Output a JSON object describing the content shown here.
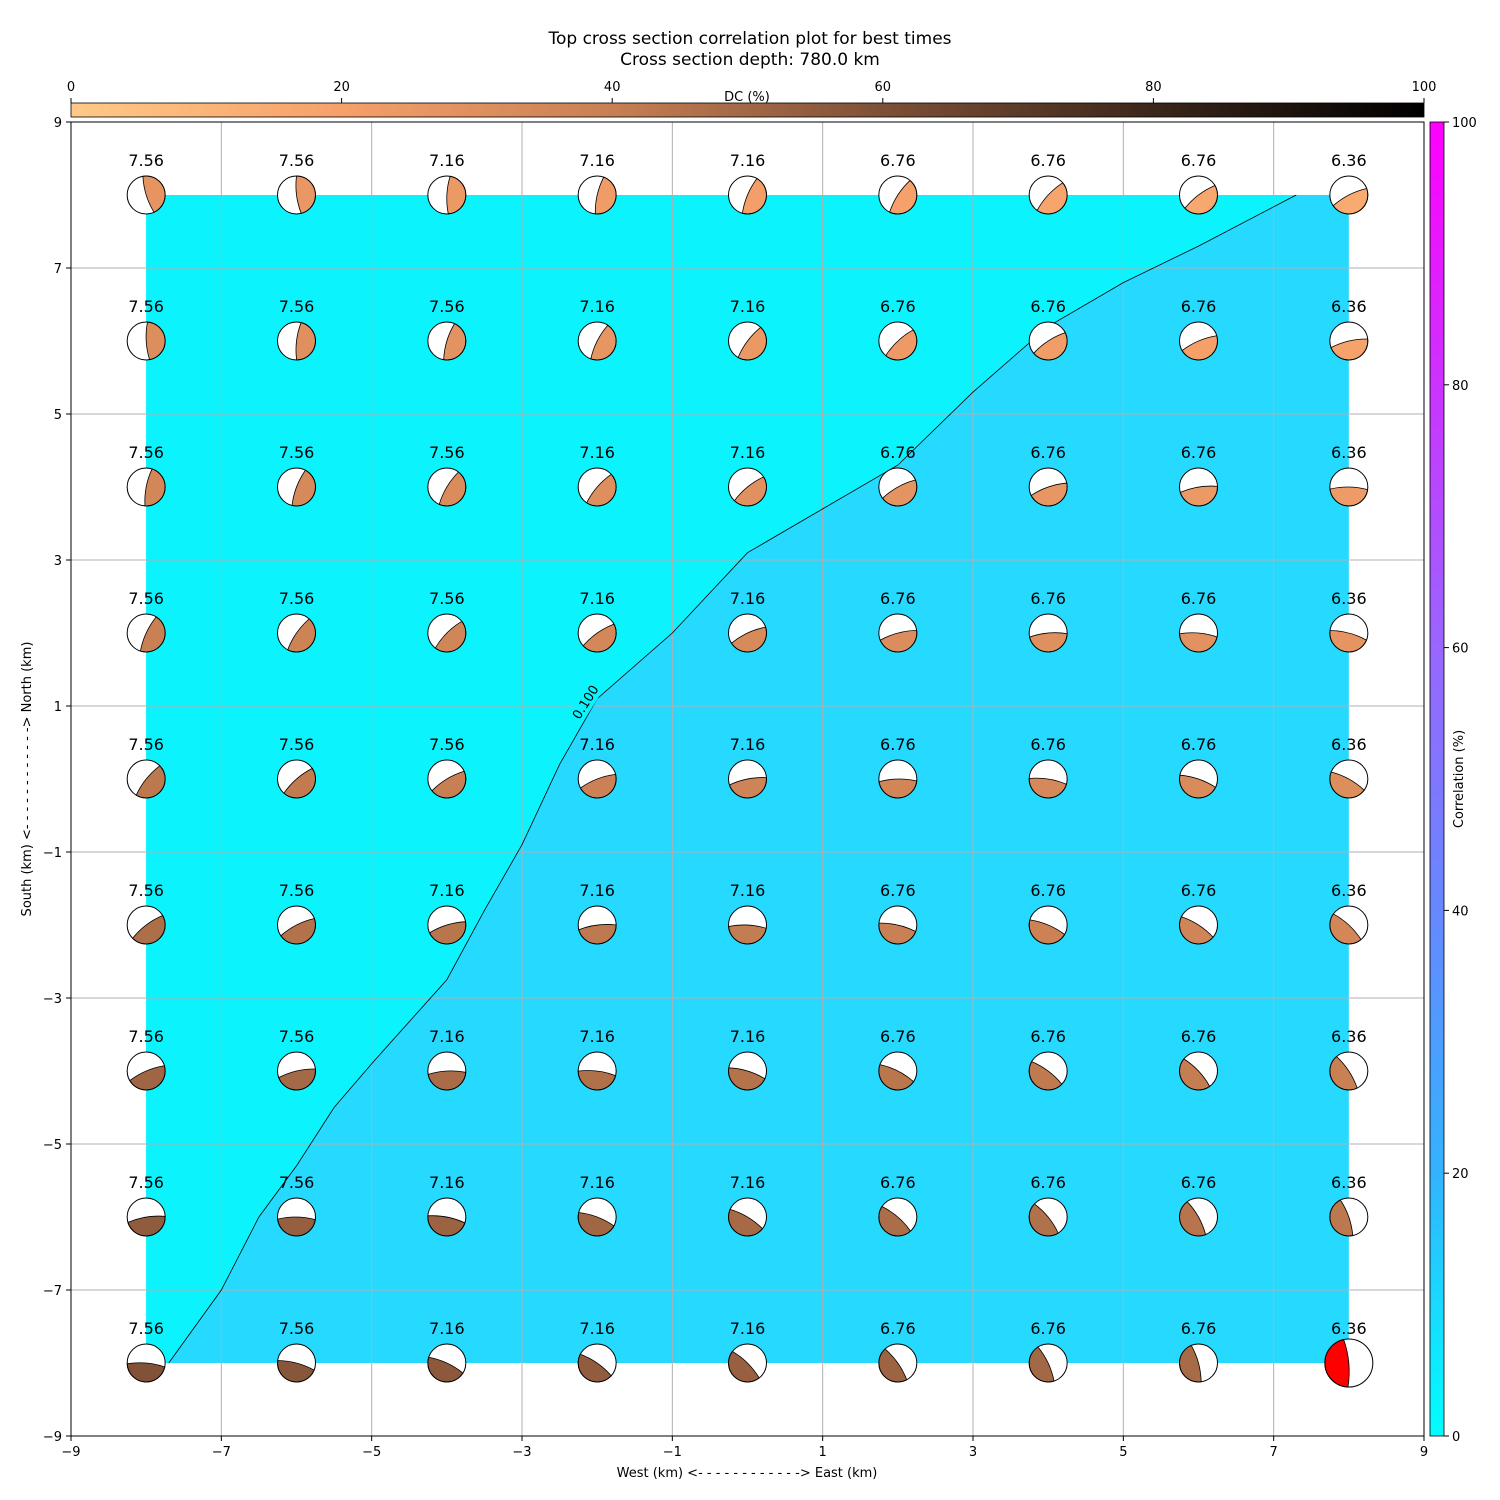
{
  "chart_data": {
    "type": "heatmap",
    "title": "Top cross section correlation plot for best times",
    "subtitle": "Cross section depth: 780.0 km",
    "xlabel": "West (km) <- - - - - - - - - - - -> East (km)",
    "ylabel": "South (km) <- - - - - - - - - - - -> North (km)",
    "xlim": [
      -9,
      9
    ],
    "ylim": [
      -9,
      9
    ],
    "x_ticks": [
      "−9",
      "−7",
      "−5",
      "−3",
      "−1",
      "1",
      "3",
      "5",
      "7",
      "9"
    ],
    "y_ticks": [
      "−9",
      "−7",
      "−5",
      "−3",
      "−1",
      "1",
      "3",
      "5",
      "7",
      "9"
    ],
    "grid": true,
    "dc_colorbar": {
      "label": "DC (%)",
      "range": [
        0,
        100
      ],
      "ticks": [
        "0",
        "20",
        "40",
        "60",
        "80",
        "100"
      ],
      "colors": [
        "#ffc987",
        "#f6a06a",
        "#c77f53",
        "#7e5037",
        "#3b261a",
        "#000000"
      ]
    },
    "correlation_colorbar": {
      "label": "Correlation (%)",
      "range": [
        0,
        100
      ],
      "ticks": [
        "0",
        "20",
        "40",
        "60",
        "80",
        "100"
      ],
      "colors": [
        "#00ffff",
        "#33b3ff",
        "#6688ff",
        "#9966ff",
        "#cc33ff",
        "#ff00ff"
      ]
    },
    "contour": {
      "level_label": "0.100",
      "points": [
        [
          -7.7,
          -8
        ],
        [
          -7,
          -7
        ],
        [
          -6.5,
          -6
        ],
        [
          -6,
          -5.3
        ],
        [
          -5.5,
          -4.5
        ],
        [
          -5,
          -3.9
        ],
        [
          -4,
          -2.75
        ],
        [
          -3.5,
          -1.8
        ],
        [
          -3,
          -0.9
        ],
        [
          -2.5,
          0.2
        ],
        [
          -2,
          1.1
        ],
        [
          -1,
          2
        ],
        [
          0,
          3.1
        ],
        [
          1,
          3.7
        ],
        [
          2,
          4.3
        ],
        [
          3,
          5.3
        ],
        [
          4,
          6.2
        ],
        [
          5,
          6.8
        ],
        [
          6,
          7.3
        ],
        [
          7.3,
          8
        ]
      ],
      "region_low_color": "#0bf4fe",
      "region_high_color": "#26d9ff"
    },
    "x_positions": [
      -8,
      -6,
      -4,
      -2,
      0,
      2,
      4,
      6,
      8
    ],
    "y_positions": [
      8,
      6,
      4,
      2,
      0,
      -2,
      -4,
      -6,
      -8
    ],
    "magnitudes": [
      [
        "7.56",
        "7.56",
        "7.16",
        "7.16",
        "7.16",
        "6.76",
        "6.76",
        "6.76",
        "6.36"
      ],
      [
        "7.56",
        "7.56",
        "7.56",
        "7.16",
        "7.16",
        "6.76",
        "6.76",
        "6.76",
        "6.36"
      ],
      [
        "7.56",
        "7.56",
        "7.56",
        "7.16",
        "7.16",
        "6.76",
        "6.76",
        "6.76",
        "6.36"
      ],
      [
        "7.56",
        "7.56",
        "7.56",
        "7.16",
        "7.16",
        "6.76",
        "6.76",
        "6.76",
        "6.36"
      ],
      [
        "7.56",
        "7.56",
        "7.56",
        "7.16",
        "7.16",
        "6.76",
        "6.76",
        "6.76",
        "6.36"
      ],
      [
        "7.56",
        "7.56",
        "7.16",
        "7.16",
        "7.16",
        "6.76",
        "6.76",
        "6.76",
        "6.36"
      ],
      [
        "7.56",
        "7.56",
        "7.16",
        "7.16",
        "7.16",
        "6.76",
        "6.76",
        "6.76",
        "6.36"
      ],
      [
        "7.56",
        "7.56",
        "7.16",
        "7.16",
        "7.16",
        "6.76",
        "6.76",
        "6.76",
        "6.36"
      ],
      [
        "7.56",
        "7.56",
        "7.16",
        "7.16",
        "7.16",
        "6.76",
        "6.76",
        "6.76",
        "6.36"
      ]
    ],
    "best_solution": {
      "x": 8,
      "y": -8,
      "color": "#ff0000"
    }
  }
}
